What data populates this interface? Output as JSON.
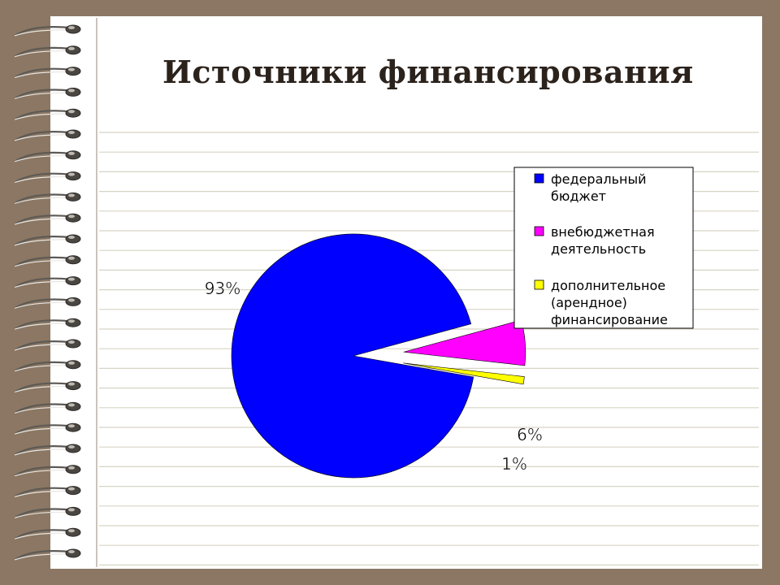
{
  "slide": {
    "title": "Источники финансирования"
  },
  "chart_data": {
    "type": "pie",
    "categories": [
      "федеральный бюджет",
      "внебюджетная деятельность",
      "дополнительное (арендное) финансирование"
    ],
    "legend_lines": [
      [
        "федеральный",
        "бюджет"
      ],
      [
        "внебюджетная",
        "деятельность"
      ],
      [
        "дополнительное",
        "(арендное)",
        "финансирование"
      ]
    ],
    "values": [
      93,
      6,
      1
    ],
    "data_labels": [
      "93%",
      "6%",
      "1%"
    ],
    "colors": [
      "#0000ff",
      "#ff00ff",
      "#ffff00"
    ],
    "exploded": [
      false,
      true,
      true
    ],
    "legend_position": "right"
  }
}
